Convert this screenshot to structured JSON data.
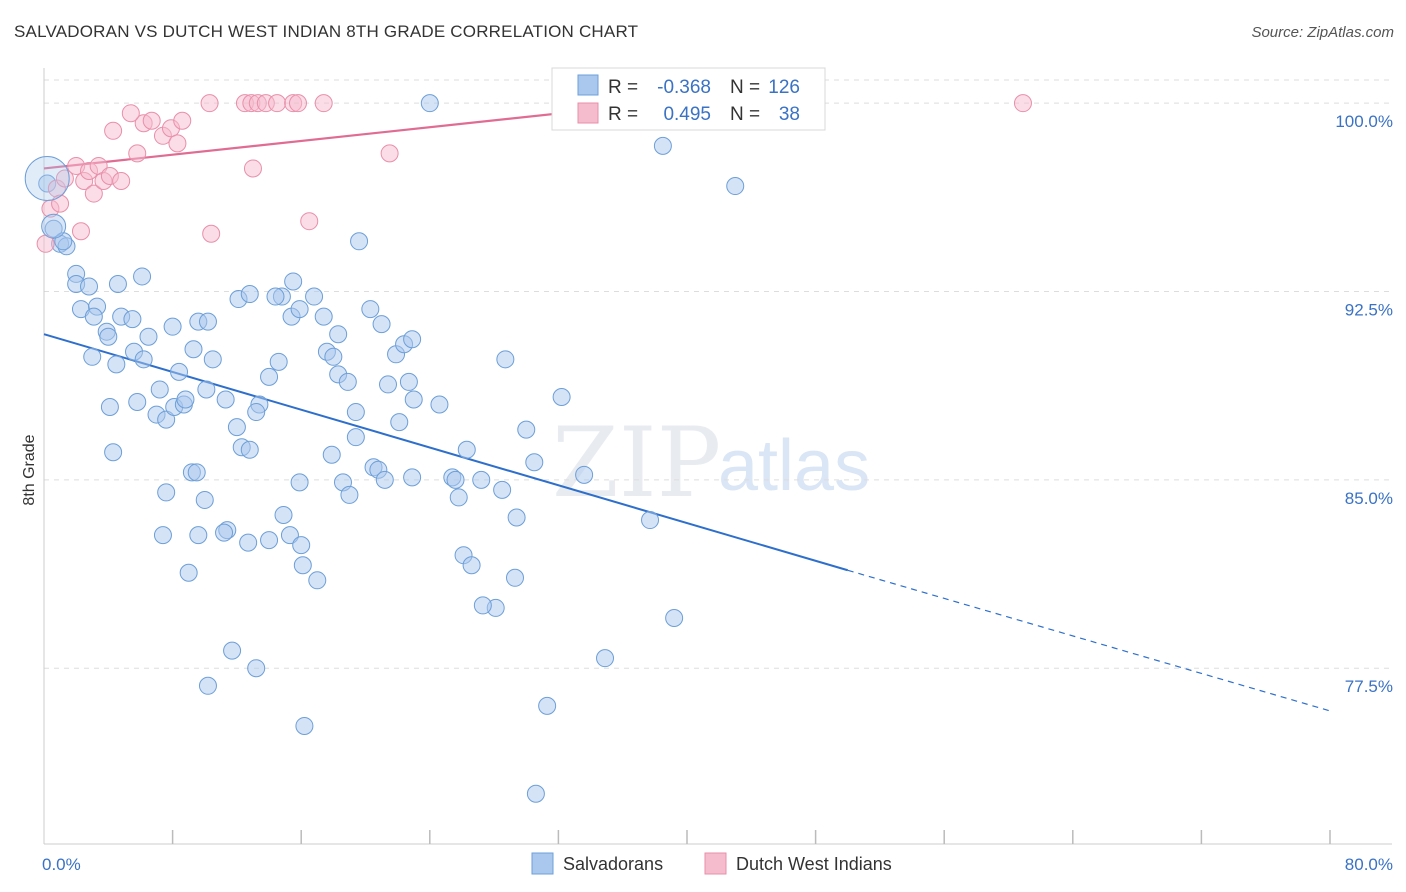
{
  "header": {
    "title": "SALVADORAN VS DUTCH WEST INDIAN 8TH GRADE CORRELATION CHART",
    "source": "Source: ZipAtlas.com"
  },
  "watermark": {
    "zip": "ZIP",
    "atlas": "atlas"
  },
  "colors": {
    "blue_fill": "#aac8ee",
    "blue_stroke": "#6d9fd8",
    "blue_line": "#2e6fcc",
    "pink_fill": "#f5bccd",
    "pink_stroke": "#e98fab",
    "pink_line": "#e06b93",
    "grid": "#dddddd",
    "axis_text": "#3a72c4"
  },
  "legend": {
    "r_label": "R =",
    "n_label": "N =",
    "salvadoran": {
      "r": "-0.368",
      "n": "126"
    },
    "dutch": {
      "r": "0.495",
      "n": "38"
    }
  },
  "bottom_legend": {
    "salvadorans": "Salvadorans",
    "dutch": "Dutch West Indians"
  },
  "chart_data": {
    "type": "scatter",
    "title": "SALVADORAN VS DUTCH WEST INDIAN 8TH GRADE CORRELATION CHART",
    "xlabel": "",
    "ylabel": "8th Grade",
    "xlim": [
      0,
      80
    ],
    "ylim": [
      70.5,
      101.4
    ],
    "y_ticks": [
      {
        "value": 100.0,
        "label": "100.0%"
      },
      {
        "value": 92.5,
        "label": "92.5%"
      },
      {
        "value": 85.0,
        "label": "85.0%"
      },
      {
        "value": 77.5,
        "label": "77.5%"
      }
    ],
    "x_tick_labels": [
      {
        "value": 0,
        "label": "0.0%"
      },
      {
        "value": 80,
        "label": "80.0%"
      }
    ],
    "x_minor_ticks": [
      8,
      16,
      24,
      32,
      40,
      48,
      56,
      64,
      72,
      80
    ],
    "series": [
      {
        "name": "Salvadorans",
        "color": "#aac8ee",
        "trend": {
          "x0": 0,
          "y0": 90.8,
          "x1": 50,
          "y1": 81.4,
          "dash_x1": 80,
          "dash_y1": 75.8
        },
        "points": [
          [
            0.2,
            96.8
          ],
          [
            0.6,
            95.0
          ],
          [
            1.0,
            94.4
          ],
          [
            1.4,
            94.3
          ],
          [
            2.0,
            93.2
          ],
          [
            2.0,
            92.8
          ],
          [
            2.8,
            92.7
          ],
          [
            2.3,
            91.8
          ],
          [
            3.3,
            91.9
          ],
          [
            3.1,
            91.5
          ],
          [
            3.9,
            90.9
          ],
          [
            4.0,
            90.7
          ],
          [
            4.6,
            92.8
          ],
          [
            4.8,
            91.5
          ],
          [
            5.5,
            91.4
          ],
          [
            5.6,
            90.1
          ],
          [
            4.5,
            89.6
          ],
          [
            6.2,
            89.8
          ],
          [
            6.5,
            90.7
          ],
          [
            7.2,
            88.6
          ],
          [
            5.8,
            88.1
          ],
          [
            4.1,
            87.9
          ],
          [
            7.0,
            87.6
          ],
          [
            7.6,
            87.4
          ],
          [
            8.1,
            87.9
          ],
          [
            8.7,
            88.0
          ],
          [
            8.8,
            88.2
          ],
          [
            8.4,
            89.3
          ],
          [
            9.3,
            90.2
          ],
          [
            10.5,
            89.8
          ],
          [
            9.6,
            91.3
          ],
          [
            10.2,
            91.3
          ],
          [
            6.1,
            93.1
          ],
          [
            8.0,
            91.1
          ],
          [
            12.1,
            92.2
          ],
          [
            11.3,
            88.2
          ],
          [
            12.0,
            87.1
          ],
          [
            12.3,
            86.3
          ],
          [
            12.8,
            86.2
          ],
          [
            13.4,
            88.0
          ],
          [
            13.2,
            87.7
          ],
          [
            14.0,
            89.1
          ],
          [
            14.6,
            89.7
          ],
          [
            14.8,
            92.3
          ],
          [
            14.4,
            92.3
          ],
          [
            15.4,
            91.5
          ],
          [
            15.9,
            91.8
          ],
          [
            15.5,
            92.9
          ],
          [
            17.4,
            91.5
          ],
          [
            17.6,
            90.1
          ],
          [
            18.0,
            89.9
          ],
          [
            18.3,
            89.2
          ],
          [
            18.3,
            90.8
          ],
          [
            18.9,
            88.9
          ],
          [
            19.4,
            87.7
          ],
          [
            19.4,
            86.7
          ],
          [
            18.6,
            84.9
          ],
          [
            19.0,
            84.4
          ],
          [
            20.3,
            91.8
          ],
          [
            21.0,
            91.2
          ],
          [
            21.9,
            90.0
          ],
          [
            22.4,
            90.4
          ],
          [
            22.9,
            90.6
          ],
          [
            21.4,
            88.8
          ],
          [
            22.7,
            88.9
          ],
          [
            23.0,
            88.2
          ],
          [
            22.1,
            87.3
          ],
          [
            20.5,
            85.5
          ],
          [
            20.8,
            85.4
          ],
          [
            21.2,
            85.0
          ],
          [
            16.8,
            92.3
          ],
          [
            19.6,
            94.5
          ],
          [
            15.9,
            84.9
          ],
          [
            14.9,
            83.6
          ],
          [
            15.3,
            82.8
          ],
          [
            16.0,
            82.4
          ],
          [
            16.1,
            81.6
          ],
          [
            17.0,
            81.0
          ],
          [
            12.7,
            82.5
          ],
          [
            14.0,
            82.6
          ],
          [
            10.0,
            84.2
          ],
          [
            11.4,
            83.0
          ],
          [
            11.2,
            82.9
          ],
          [
            9.6,
            82.8
          ],
          [
            7.6,
            84.5
          ],
          [
            7.4,
            82.8
          ],
          [
            9.2,
            85.3
          ],
          [
            9.5,
            85.3
          ],
          [
            9.0,
            81.3
          ],
          [
            11.7,
            78.2
          ],
          [
            13.2,
            77.5
          ],
          [
            10.2,
            76.8
          ],
          [
            16.2,
            75.2
          ],
          [
            25.4,
            85.1
          ],
          [
            25.8,
            84.3
          ],
          [
            27.2,
            85.0
          ],
          [
            28.5,
            84.6
          ],
          [
            26.1,
            82.0
          ],
          [
            26.6,
            81.6
          ],
          [
            28.1,
            79.9
          ],
          [
            29.3,
            81.1
          ],
          [
            28.7,
            89.8
          ],
          [
            29.4,
            83.5
          ],
          [
            30.5,
            85.7
          ],
          [
            31.3,
            76.0
          ],
          [
            30.6,
            72.5
          ],
          [
            32.2,
            88.3
          ],
          [
            33.6,
            85.2
          ],
          [
            34.9,
            77.9
          ],
          [
            37.7,
            83.4
          ],
          [
            39.2,
            79.5
          ],
          [
            27.3,
            80.0
          ],
          [
            22.9,
            85.1
          ],
          [
            24.6,
            88.0
          ],
          [
            25.6,
            85.0
          ],
          [
            30.0,
            87.0
          ],
          [
            24.0,
            100.0
          ],
          [
            38.5,
            98.3
          ],
          [
            43.0,
            96.7
          ],
          [
            26.3,
            86.2
          ],
          [
            17.9,
            86.0
          ],
          [
            10.1,
            88.6
          ],
          [
            12.8,
            92.4
          ],
          [
            1.2,
            94.5
          ],
          [
            3.0,
            89.9
          ],
          [
            4.3,
            86.1
          ]
        ]
      },
      {
        "name": "Dutch West Indians",
        "color": "#f5bccd",
        "trend": {
          "x0": 0,
          "y0": 97.4,
          "x1": 38,
          "y1": 100.0
        },
        "points": [
          [
            0.1,
            94.4
          ],
          [
            0.4,
            95.8
          ],
          [
            0.8,
            96.6
          ],
          [
            1.3,
            97.0
          ],
          [
            2.0,
            97.5
          ],
          [
            2.5,
            96.9
          ],
          [
            2.8,
            97.3
          ],
          [
            3.1,
            96.4
          ],
          [
            3.4,
            97.5
          ],
          [
            3.7,
            96.9
          ],
          [
            4.1,
            97.1
          ],
          [
            4.3,
            98.9
          ],
          [
            4.8,
            96.9
          ],
          [
            5.8,
            98.0
          ],
          [
            6.2,
            99.2
          ],
          [
            6.7,
            99.3
          ],
          [
            7.4,
            98.7
          ],
          [
            7.9,
            99.0
          ],
          [
            8.3,
            98.4
          ],
          [
            8.6,
            99.3
          ],
          [
            5.4,
            99.6
          ],
          [
            10.3,
            100.0
          ],
          [
            10.4,
            94.8
          ],
          [
            12.5,
            100.0
          ],
          [
            12.9,
            100.0
          ],
          [
            13.3,
            100.0
          ],
          [
            13.8,
            100.0
          ],
          [
            14.5,
            100.0
          ],
          [
            15.5,
            100.0
          ],
          [
            15.8,
            100.0
          ],
          [
            17.4,
            100.0
          ],
          [
            13.0,
            97.4
          ],
          [
            16.5,
            95.3
          ],
          [
            21.5,
            98.0
          ],
          [
            35.8,
            100.0
          ],
          [
            60.9,
            100.0
          ],
          [
            1.0,
            96.0
          ],
          [
            2.3,
            94.9
          ]
        ]
      }
    ]
  }
}
